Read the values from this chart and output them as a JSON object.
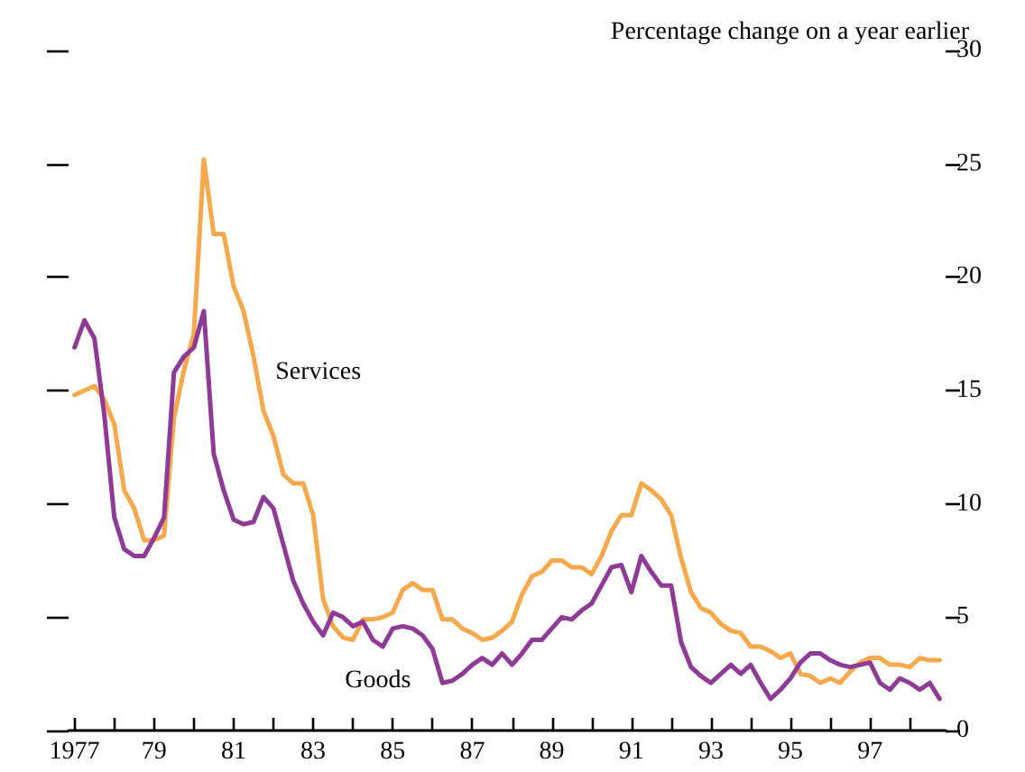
{
  "chart_data": {
    "type": "line",
    "title": "Percentage change on a year earlier",
    "x": [
      1977,
      1977.25,
      1977.5,
      1977.75,
      1978,
      1978.25,
      1978.5,
      1978.75,
      1979,
      1979.25,
      1979.5,
      1979.75,
      1980,
      1980.25,
      1980.5,
      1980.75,
      1981,
      1981.25,
      1981.5,
      1981.75,
      1982,
      1982.25,
      1982.5,
      1982.75,
      1983,
      1983.25,
      1983.5,
      1983.75,
      1984,
      1984.25,
      1984.5,
      1984.75,
      1985,
      1985.25,
      1985.5,
      1985.75,
      1986,
      1986.25,
      1986.5,
      1986.75,
      1987,
      1987.25,
      1987.5,
      1987.75,
      1988,
      1988.25,
      1988.5,
      1988.75,
      1989,
      1989.25,
      1989.5,
      1989.75,
      1990,
      1990.25,
      1990.5,
      1990.75,
      1991,
      1991.25,
      1991.5,
      1991.75,
      1992,
      1992.25,
      1992.5,
      1992.75,
      1993,
      1993.25,
      1993.5,
      1993.75,
      1994,
      1994.25,
      1994.5,
      1994.75,
      1995,
      1995.25,
      1995.5,
      1995.75,
      1996,
      1996.25,
      1996.5,
      1996.75,
      1997,
      1997.25,
      1997.5,
      1997.75,
      1998,
      1998.25,
      1998.5,
      1998.75
    ],
    "series": [
      {
        "name": "Services",
        "color": "#f7a84a",
        "values": [
          14.8,
          15.0,
          15.2,
          14.6,
          13.5,
          10.6,
          9.8,
          8.4,
          8.4,
          8.6,
          13.8,
          15.9,
          17.5,
          25.2,
          21.9,
          21.9,
          19.6,
          18.5,
          16.5,
          14.1,
          13.0,
          11.3,
          10.9,
          10.9,
          9.5,
          5.8,
          4.6,
          4.1,
          4.0,
          4.9,
          4.9,
          5.0,
          5.2,
          6.2,
          6.5,
          6.2,
          6.2,
          4.9,
          4.9,
          4.5,
          4.3,
          4.0,
          4.1,
          4.4,
          4.8,
          6.0,
          6.8,
          7.0,
          7.5,
          7.5,
          7.2,
          7.2,
          6.9,
          7.7,
          8.8,
          9.5,
          9.5,
          10.9,
          10.6,
          10.2,
          9.5,
          7.6,
          6.1,
          5.4,
          5.2,
          4.7,
          4.4,
          4.3,
          3.7,
          3.7,
          3.5,
          3.2,
          3.4,
          2.5,
          2.4,
          2.1,
          2.3,
          2.1,
          2.6,
          3.0,
          3.2,
          3.2,
          2.9,
          2.9,
          2.8,
          3.2,
          3.1,
          3.1
        ]
      },
      {
        "name": "Goods",
        "color": "#8e3a96",
        "values": [
          16.9,
          18.1,
          17.3,
          13.9,
          9.4,
          8.0,
          7.7,
          7.7,
          8.5,
          9.4,
          15.8,
          16.5,
          16.9,
          18.5,
          12.2,
          10.6,
          9.3,
          9.1,
          9.2,
          10.3,
          9.8,
          8.2,
          6.6,
          5.6,
          4.8,
          4.2,
          5.2,
          5.0,
          4.6,
          4.8,
          4.0,
          3.7,
          4.5,
          4.6,
          4.5,
          4.2,
          3.6,
          2.1,
          2.2,
          2.5,
          2.9,
          3.2,
          2.9,
          3.4,
          2.9,
          3.4,
          4.0,
          4.0,
          4.5,
          5.0,
          4.9,
          5.3,
          5.6,
          6.4,
          7.2,
          7.3,
          6.1,
          7.7,
          7.0,
          6.4,
          6.4,
          3.9,
          2.8,
          2.4,
          2.1,
          2.5,
          2.9,
          2.5,
          2.9,
          2.1,
          1.4,
          1.8,
          2.3,
          3.0,
          3.4,
          3.4,
          3.1,
          2.9,
          2.8,
          2.9,
          3.0,
          2.1,
          1.8,
          2.3,
          2.1,
          1.8,
          2.1,
          1.4
        ]
      }
    ],
    "xlim": [
      1976.85,
      1998.9
    ],
    "xticks": [
      {
        "value": 1977,
        "label": "1977"
      },
      {
        "value": 1978,
        "label": null
      },
      {
        "value": 1979,
        "label": "79"
      },
      {
        "value": 1980,
        "label": null
      },
      {
        "value": 1981,
        "label": "81"
      },
      {
        "value": 1982,
        "label": null
      },
      {
        "value": 1983,
        "label": "83"
      },
      {
        "value": 1984,
        "label": null
      },
      {
        "value": 1985,
        "label": "85"
      },
      {
        "value": 1986,
        "label": null
      },
      {
        "value": 1987,
        "label": "87"
      },
      {
        "value": 1988,
        "label": null
      },
      {
        "value": 1989,
        "label": "89"
      },
      {
        "value": 1990,
        "label": null
      },
      {
        "value": 1991,
        "label": "91"
      },
      {
        "value": 1992,
        "label": null
      },
      {
        "value": 1993,
        "label": "93"
      },
      {
        "value": 1994,
        "label": null
      },
      {
        "value": 1995,
        "label": "95"
      },
      {
        "value": 1996,
        "label": null
      },
      {
        "value": 1997,
        "label": "97"
      },
      {
        "value": 1998,
        "label": null
      }
    ],
    "ylim": [
      0,
      30
    ],
    "yticks": [
      0,
      5,
      10,
      15,
      20,
      25,
      30
    ],
    "grid": false,
    "legend": false,
    "marker": "none",
    "line_style": "solid"
  }
}
